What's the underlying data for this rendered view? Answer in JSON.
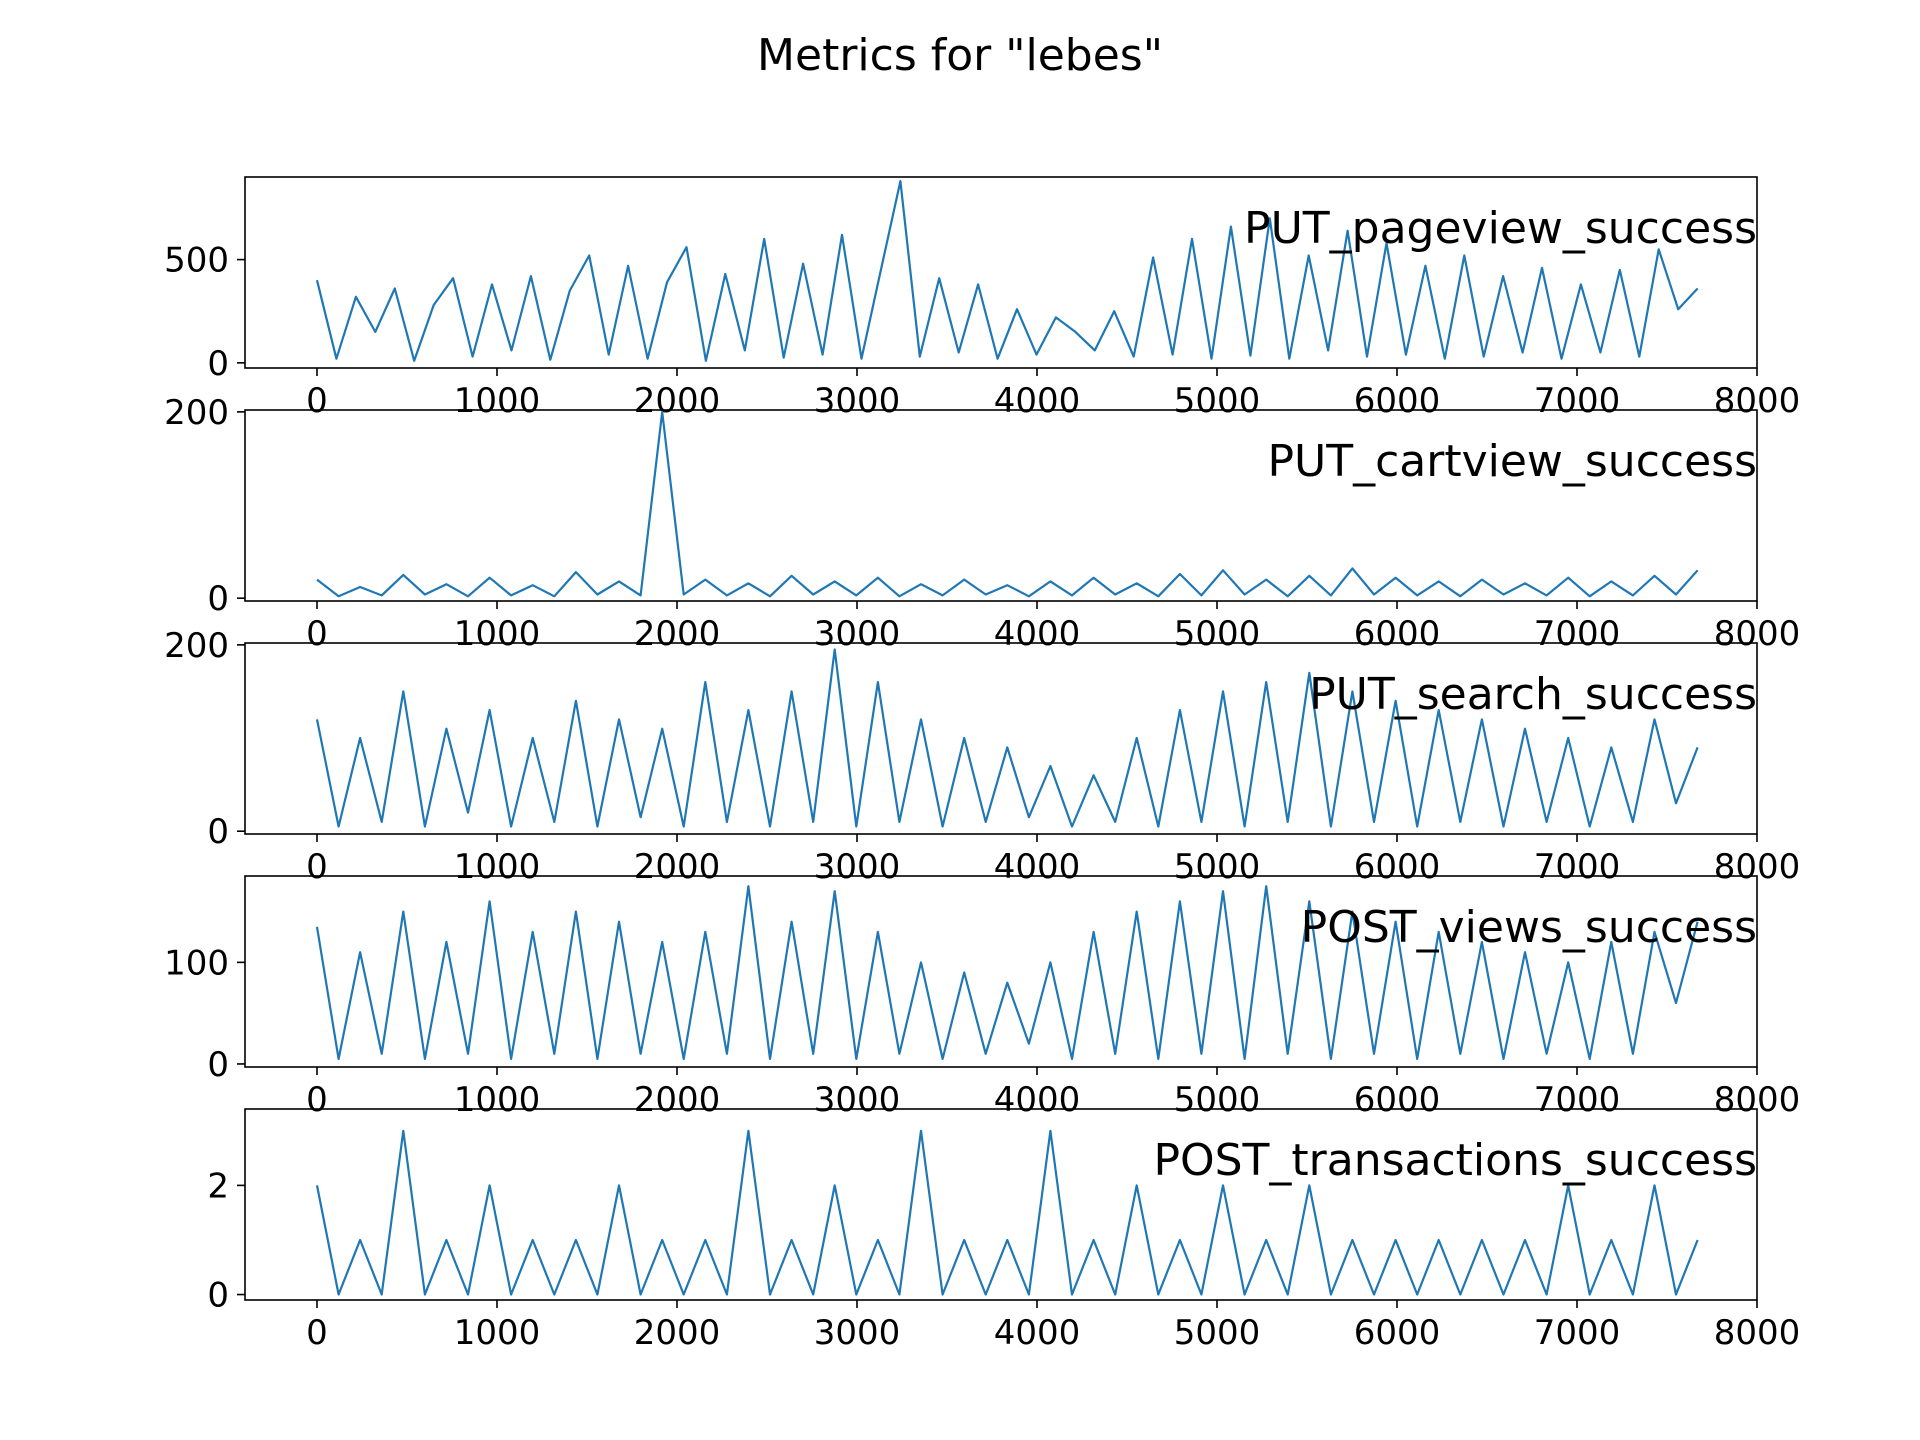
{
  "figure": {
    "title": "Metrics for \"lebes\""
  },
  "chart_data": [
    {
      "type": "line",
      "series": [
        {
          "name": "PUT_pageview_success",
          "values": [
            400,
            20,
            320,
            150,
            360,
            10,
            280,
            410,
            30,
            380,
            60,
            420,
            15,
            350,
            520,
            40,
            470,
            20,
            390,
            560,
            10,
            430,
            60,
            600,
            25,
            480,
            40,
            620,
            20,
            450,
            880,
            30,
            410,
            50,
            380,
            20,
            260,
            40,
            220,
            150,
            60,
            250,
            30,
            510,
            40,
            600,
            20,
            660,
            35,
            700,
            20,
            520,
            60,
            640,
            30,
            580,
            40,
            470,
            20,
            520,
            30,
            420,
            50,
            460,
            20,
            380,
            50,
            450,
            30,
            550,
            260,
            360
          ]
        }
      ],
      "x_range": [
        0,
        7670
      ],
      "xlim": [
        -400,
        8000
      ],
      "ylim": [
        -25,
        900
      ],
      "xticks": [
        0,
        1000,
        2000,
        3000,
        4000,
        5000,
        6000,
        7000,
        8000
      ],
      "yticks": [
        0,
        500
      ],
      "legend_text": "PUT_pageview_success",
      "legend": "top-right",
      "grid": false
    },
    {
      "type": "line",
      "series": [
        {
          "name": "PUT_cartview_success",
          "values": [
            20,
            2,
            12,
            3,
            25,
            4,
            15,
            2,
            22,
            3,
            14,
            2,
            28,
            4,
            18,
            3,
            200,
            4,
            20,
            3,
            16,
            2,
            24,
            4,
            18,
            3,
            22,
            2,
            15,
            3,
            20,
            4,
            14,
            2,
            18,
            3,
            22,
            4,
            16,
            2,
            26,
            3,
            30,
            4,
            20,
            2,
            24,
            3,
            32,
            4,
            22,
            3,
            18,
            2,
            20,
            4,
            16,
            3,
            22,
            2,
            18,
            3,
            24,
            4,
            30
          ]
        }
      ],
      "x_range": [
        0,
        7670
      ],
      "xlim": [
        -400,
        8000
      ],
      "ylim": [
        -3,
        202
      ],
      "xticks": [
        0,
        1000,
        2000,
        3000,
        4000,
        5000,
        6000,
        7000,
        8000
      ],
      "yticks": [
        0,
        200
      ],
      "legend_text": "PUT_cartview_success",
      "legend": "top-right",
      "grid": false
    },
    {
      "type": "line",
      "series": [
        {
          "name": "PUT_search_success",
          "values": [
            120,
            5,
            100,
            10,
            150,
            5,
            110,
            20,
            130,
            5,
            100,
            10,
            140,
            5,
            120,
            15,
            110,
            5,
            160,
            10,
            130,
            5,
            150,
            10,
            195,
            5,
            160,
            10,
            120,
            5,
            100,
            10,
            90,
            15,
            70,
            5,
            60,
            10,
            100,
            5,
            130,
            10,
            150,
            5,
            160,
            10,
            170,
            5,
            150,
            10,
            140,
            5,
            130,
            10,
            120,
            5,
            110,
            10,
            100,
            5,
            90,
            10,
            120,
            30,
            90
          ]
        }
      ],
      "x_range": [
        0,
        7670
      ],
      "xlim": [
        -400,
        8000
      ],
      "ylim": [
        -3,
        202
      ],
      "xticks": [
        0,
        1000,
        2000,
        3000,
        4000,
        5000,
        6000,
        7000,
        8000
      ],
      "yticks": [
        0,
        200
      ],
      "legend_text": "PUT_search_success",
      "legend": "top-right",
      "grid": false
    },
    {
      "type": "line",
      "series": [
        {
          "name": "POST_views_success",
          "values": [
            135,
            5,
            110,
            10,
            150,
            5,
            120,
            10,
            160,
            5,
            130,
            10,
            150,
            5,
            140,
            10,
            120,
            5,
            130,
            10,
            175,
            5,
            140,
            10,
            170,
            5,
            130,
            10,
            100,
            5,
            90,
            10,
            80,
            20,
            100,
            5,
            130,
            10,
            150,
            5,
            160,
            10,
            170,
            5,
            175,
            10,
            160,
            5,
            150,
            10,
            140,
            5,
            130,
            10,
            120,
            5,
            110,
            10,
            100,
            5,
            120,
            10,
            130,
            60,
            140
          ]
        }
      ],
      "x_range": [
        0,
        7670
      ],
      "xlim": [
        -400,
        8000
      ],
      "ylim": [
        -3,
        185
      ],
      "xticks": [
        0,
        1000,
        2000,
        3000,
        4000,
        5000,
        6000,
        7000,
        8000
      ],
      "yticks": [
        0,
        100
      ],
      "legend_text": "POST_views_success",
      "legend": "top-right",
      "grid": false
    },
    {
      "type": "line",
      "series": [
        {
          "name": "POST_transactions_success",
          "values": [
            2,
            0,
            1,
            0,
            3,
            0,
            1,
            0,
            2,
            0,
            1,
            0,
            1,
            0,
            2,
            0,
            1,
            0,
            1,
            0,
            3,
            0,
            1,
            0,
            2,
            0,
            1,
            0,
            3,
            0,
            1,
            0,
            1,
            0,
            3,
            0,
            1,
            0,
            2,
            0,
            1,
            0,
            2,
            0,
            1,
            0,
            2,
            0,
            1,
            0,
            1,
            0,
            1,
            0,
            1,
            0,
            1,
            0,
            2,
            0,
            1,
            0,
            2,
            0,
            1
          ]
        }
      ],
      "x_range": [
        0,
        7670
      ],
      "xlim": [
        -400,
        8000
      ],
      "ylim": [
        -0.1,
        3.4
      ],
      "xticks": [
        0,
        1000,
        2000,
        3000,
        4000,
        5000,
        6000,
        7000,
        8000
      ],
      "yticks": [
        0,
        2
      ],
      "legend_text": "POST_transactions_success",
      "legend": "top-right",
      "grid": false
    }
  ]
}
